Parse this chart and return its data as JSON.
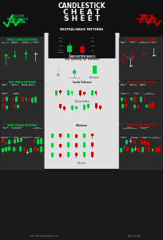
{
  "bg_color": "#1a1a1a",
  "header_bg": "#111111",
  "bullish_color": "#00cc44",
  "bearish_color": "#cc0000",
  "green_candle": "#00cc44",
  "red_candle": "#cc0000",
  "title_line1": "CANDLESTICK",
  "title_line2": "C H E A T",
  "title_line3": "S H E E T",
  "neutral_label": "NEUTRAL/BASIC PATTERNS",
  "footer_left": "https://decodingmarkets.com",
  "footer_right": "@marwoodJb",
  "bullish_label_lines": [
    "BULLISH",
    "CANDLESTICK",
    "PATTERNS"
  ],
  "bearish_label_lines": [
    "BEARISH",
    "CANDLESTICK",
    "PATTERNS"
  ],
  "center_bg": "#e0e0e0",
  "dark_box": "#111111",
  "panel_bg": "#2a2a2a",
  "panel_edge": "#444444"
}
